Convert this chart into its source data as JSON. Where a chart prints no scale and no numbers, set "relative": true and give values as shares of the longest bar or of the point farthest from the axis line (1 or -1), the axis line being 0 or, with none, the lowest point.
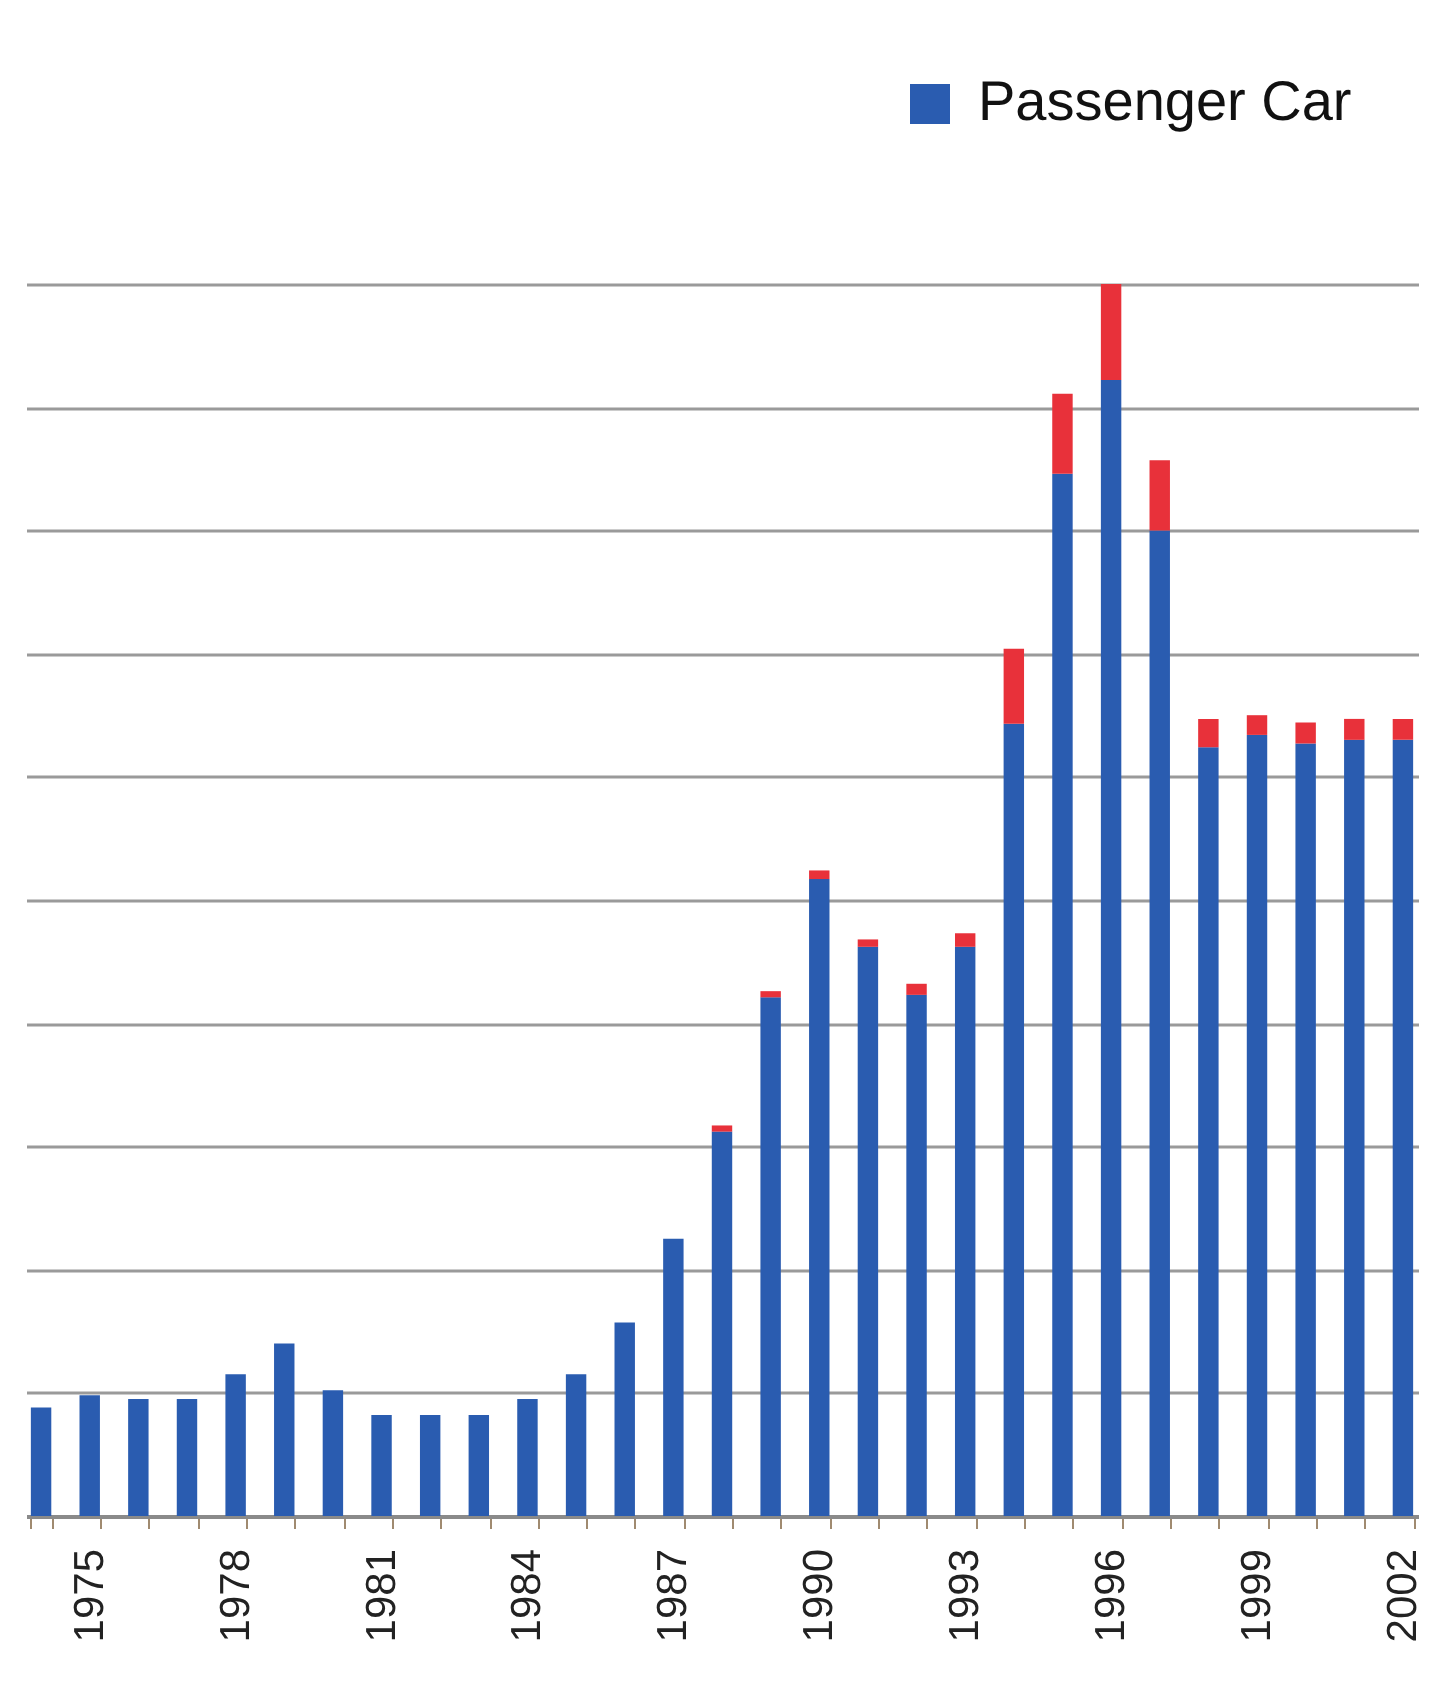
{
  "chart_data": {
    "type": "bar",
    "stacked": true,
    "relative": true,
    "grid": "y",
    "legend": "top right",
    "categories": [
      null,
      "1975",
      null,
      null,
      "1978",
      null,
      null,
      "1981",
      null,
      null,
      "1984",
      null,
      null,
      "1987",
      null,
      null,
      "1990",
      null,
      null,
      "1993",
      null,
      null,
      "1996",
      null,
      null,
      "1999",
      null,
      null,
      "2002"
    ],
    "series": [
      {
        "name": "Passenger Car",
        "color": "#2a5cb0",
        "values": [
          0.088,
          0.098,
          0.095,
          0.095,
          0.115,
          0.14,
          0.102,
          0.082,
          0.082,
          0.082,
          0.095,
          0.115,
          0.157,
          0.225,
          0.312,
          0.421,
          0.517,
          0.462,
          0.423,
          0.462,
          0.643,
          0.846,
          0.922,
          0.8,
          0.624,
          0.634,
          0.627,
          0.63,
          0.63
        ]
      },
      {
        "color": "#e8313a",
        "values": [
          0,
          0,
          0,
          0,
          0,
          0,
          0,
          0,
          0,
          0,
          0,
          0,
          0,
          0,
          0.005,
          0.005,
          0.007,
          0.006,
          0.009,
          0.011,
          0.061,
          0.065,
          0.078,
          0.057,
          0.023,
          0.016,
          0.017,
          0.017,
          0.017
        ]
      }
    ]
  }
}
